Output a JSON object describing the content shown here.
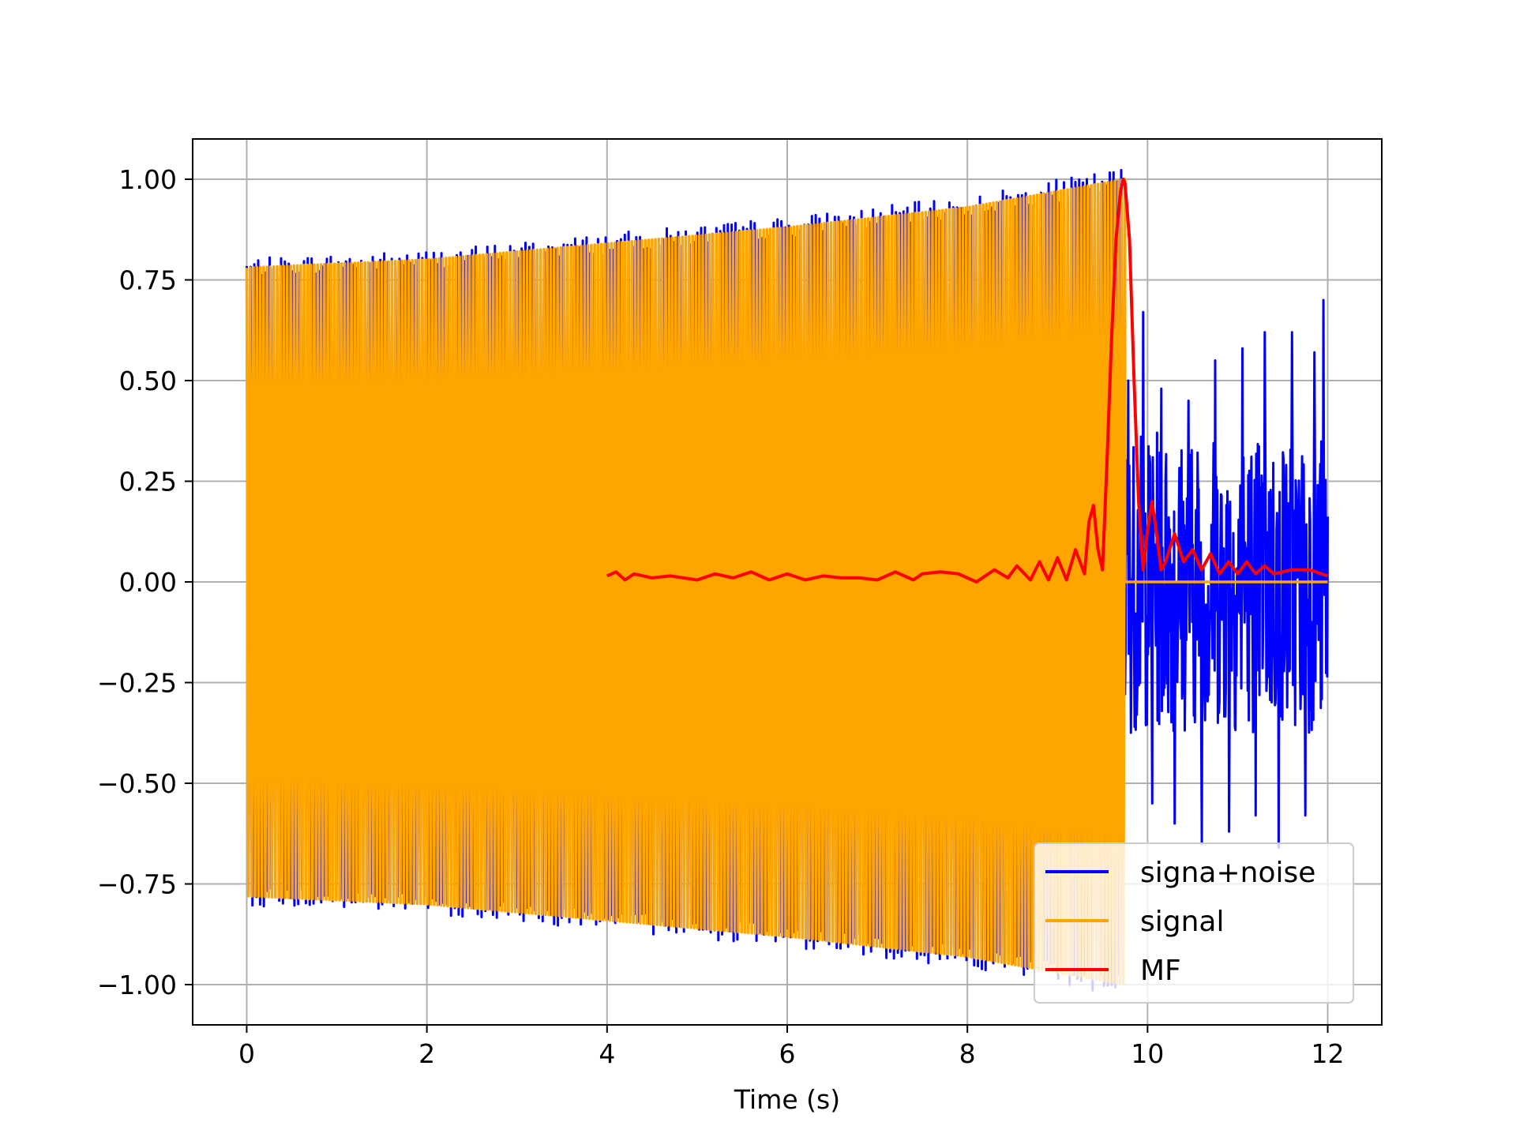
{
  "chart_data": {
    "type": "line",
    "title": "",
    "xlabel": "Time (s)",
    "ylabel": "",
    "xlim": [
      -0.6,
      12.6
    ],
    "ylim": [
      -1.1,
      1.1
    ],
    "grid": true,
    "legend_position": "lower-right",
    "x_ticks": [
      0,
      2,
      4,
      6,
      8,
      10,
      12
    ],
    "x_tick_labels": [
      "0",
      "2",
      "4",
      "6",
      "8",
      "10",
      "12"
    ],
    "y_ticks": [
      1.0,
      0.75,
      0.5,
      0.25,
      0.0,
      -0.25,
      -0.5,
      -0.75,
      -1.0
    ],
    "y_tick_labels": [
      "1.00",
      "0.75",
      "0.50",
      "0.25",
      "0.00",
      "−0.25",
      "−0.50",
      "−0.75",
      "−1.00"
    ],
    "series": [
      {
        "name": "signa+noise",
        "color": "#0000ff",
        "x_range": [
          0,
          12
        ],
        "note_values": "signal plus noise; signal active 0 to 9.75 s with amplitude 0.78 rising to 1.0, pure noise 9.75 to 12 s with peaks near +0.7 / -0.65",
        "noise_peaks": {
          "x": [
            9.78,
            9.95,
            10.05,
            10.15,
            10.3,
            10.45,
            10.6,
            10.75,
            10.9,
            11.05,
            11.2,
            11.3,
            11.45,
            11.6,
            11.75,
            11.85,
            11.95
          ],
          "y": [
            0.5,
            0.67,
            -0.55,
            0.48,
            -0.6,
            0.45,
            -0.65,
            0.55,
            -0.62,
            0.58,
            -0.58,
            0.62,
            -0.66,
            0.62,
            -0.58,
            0.57,
            0.7
          ]
        }
      },
      {
        "name": "signal",
        "color": "#ffa500",
        "x_range": [
          0,
          12
        ],
        "envelope": {
          "x": [
            0,
            2,
            4,
            6,
            8,
            9.75
          ],
          "y": [
            0.78,
            0.8,
            0.84,
            0.88,
            0.93,
            1.0
          ]
        },
        "after_end_value": 0.0,
        "end_time": 9.75
      },
      {
        "name": "MF",
        "color": "#ff0000",
        "x": [
          4.0,
          4.1,
          4.2,
          4.3,
          4.5,
          4.7,
          5.0,
          5.2,
          5.4,
          5.6,
          5.8,
          6.0,
          6.2,
          6.4,
          6.6,
          6.8,
          7.0,
          7.2,
          7.4,
          7.5,
          7.7,
          7.9,
          8.1,
          8.3,
          8.45,
          8.55,
          8.7,
          8.8,
          8.9,
          9.0,
          9.1,
          9.2,
          9.3,
          9.35,
          9.4,
          9.45,
          9.5,
          9.55,
          9.6,
          9.65,
          9.7,
          9.73,
          9.75,
          9.8,
          9.85,
          9.9,
          9.95,
          10.0,
          10.05,
          10.1,
          10.15,
          10.2,
          10.3,
          10.4,
          10.5,
          10.6,
          10.7,
          10.8,
          10.9,
          11.0,
          11.1,
          11.2,
          11.3,
          11.4,
          11.6,
          11.8,
          12.0
        ],
        "y": [
          0.015,
          0.025,
          0.005,
          0.02,
          0.01,
          0.015,
          0.005,
          0.02,
          0.01,
          0.025,
          0.005,
          0.02,
          0.005,
          0.015,
          0.01,
          0.01,
          0.005,
          0.025,
          0.005,
          0.02,
          0.025,
          0.02,
          0.0,
          0.03,
          0.01,
          0.04,
          0.005,
          0.05,
          0.005,
          0.06,
          0.005,
          0.08,
          0.02,
          0.15,
          0.19,
          0.08,
          0.03,
          0.3,
          0.6,
          0.85,
          0.97,
          1.0,
          0.99,
          0.85,
          0.5,
          0.2,
          0.03,
          0.13,
          0.2,
          0.12,
          0.03,
          0.05,
          0.12,
          0.05,
          0.08,
          0.03,
          0.07,
          0.02,
          0.05,
          0.02,
          0.05,
          0.02,
          0.04,
          0.02,
          0.03,
          0.03,
          0.015
        ]
      }
    ]
  }
}
